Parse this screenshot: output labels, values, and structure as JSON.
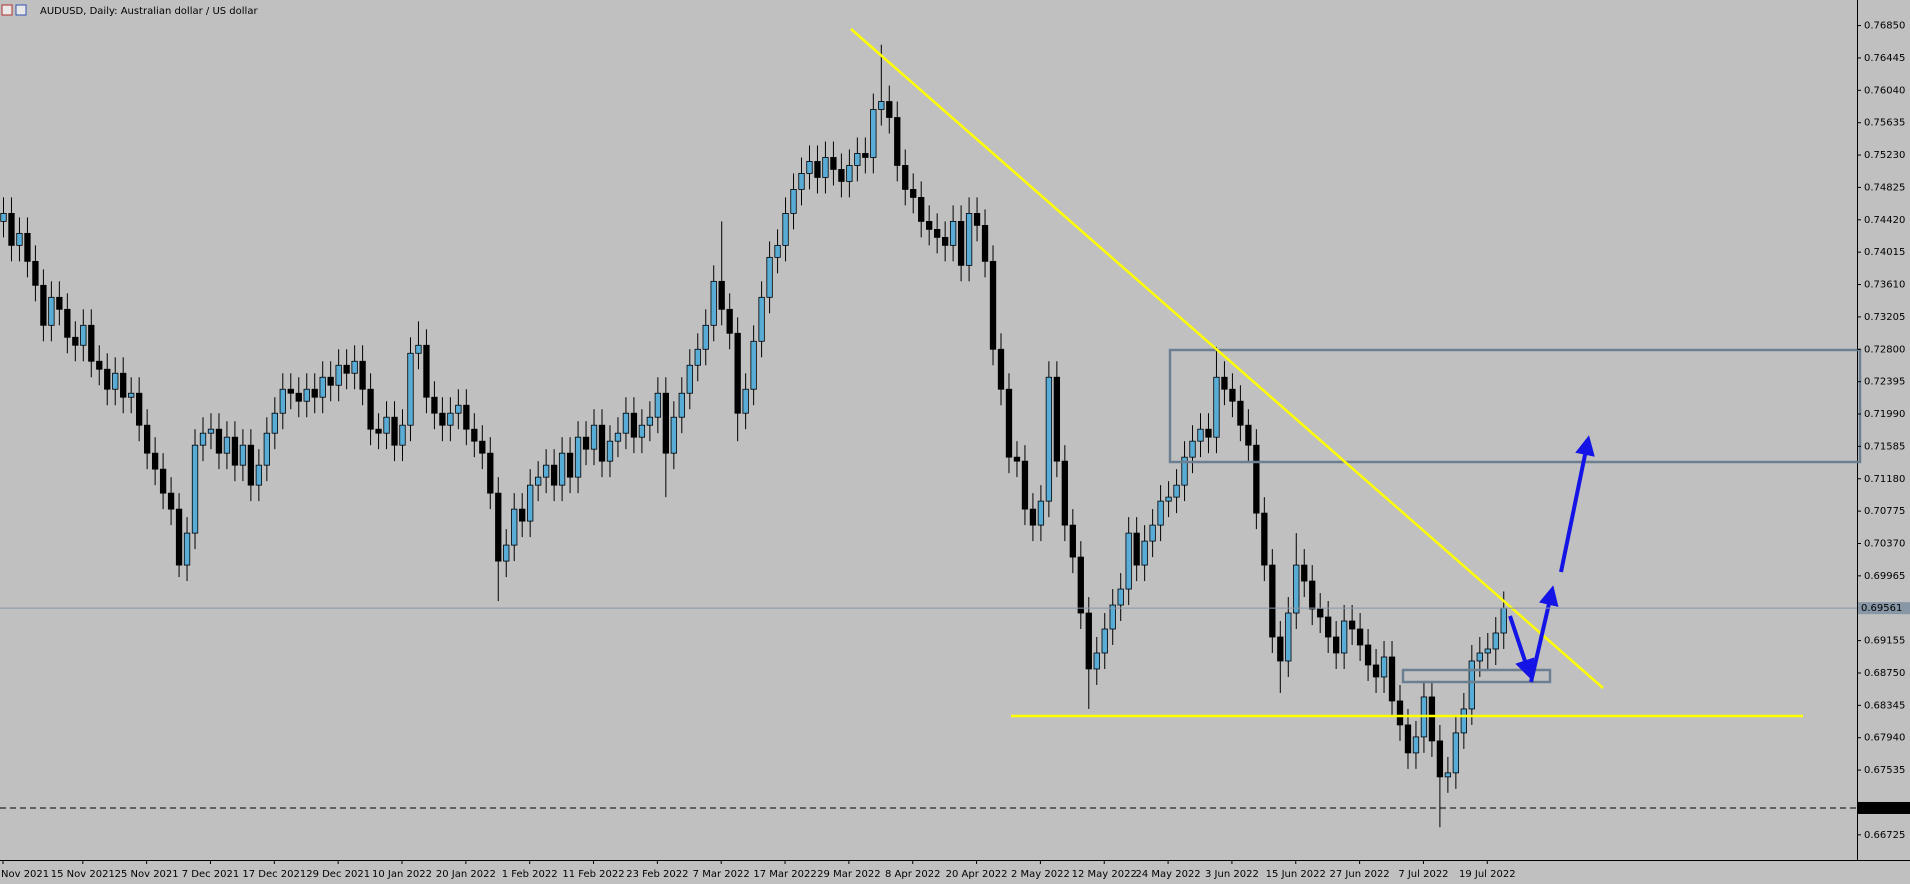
{
  "chart_data": {
    "type": "candlestick",
    "title": "AUDUSD, Daily:  Australian dollar / US dollar",
    "categories": [
      "Nov 2021",
      null,
      null,
      null,
      null,
      null,
      null,
      null,
      null,
      null,
      "15 Nov 2021",
      null,
      null,
      null,
      null,
      null,
      null,
      null,
      "25 Nov 2021",
      null,
      null,
      null,
      null,
      null,
      null,
      null,
      "7 Dec 2021",
      null,
      null,
      null,
      null,
      null,
      null,
      null,
      "17 Dec 2021",
      null,
      null,
      null,
      null,
      null,
      null,
      null,
      "29 Dec 2021",
      null,
      null,
      null,
      null,
      null,
      null,
      null,
      "10 Jan 2022",
      null,
      null,
      null,
      null,
      null,
      null,
      null,
      "20 Jan 2022",
      null,
      null,
      null,
      null,
      null,
      null,
      null,
      "1 Feb 2022",
      null,
      null,
      null,
      null,
      null,
      null,
      null,
      "11 Feb 2022",
      null,
      null,
      null,
      null,
      null,
      null,
      null,
      "23 Feb 2022",
      null,
      null,
      null,
      null,
      null,
      null,
      null,
      "7 Mar 2022",
      null,
      null,
      null,
      null,
      null,
      null,
      null,
      "17 Mar 2022",
      null,
      null,
      null,
      null,
      null,
      null,
      null,
      "29 Mar 2022",
      null,
      null,
      null,
      null,
      null,
      null,
      null,
      "8 Apr 2022",
      null,
      null,
      null,
      null,
      null,
      null,
      null,
      "20 Apr 2022",
      null,
      null,
      null,
      null,
      null,
      null,
      null,
      "2 May 2022",
      null,
      null,
      null,
      null,
      null,
      null,
      null,
      "12 May 2022",
      null,
      null,
      null,
      null,
      null,
      null,
      null,
      "24 May 2022",
      null,
      null,
      null,
      null,
      null,
      null,
      null,
      "3 Jun 2022",
      null,
      null,
      null,
      null,
      null,
      null,
      null,
      "15 Jun 2022",
      null,
      null,
      null,
      null,
      null,
      null,
      null,
      "27 Jun 2022",
      null,
      null,
      null,
      null,
      null,
      null,
      null,
      "7 Jul 2022",
      null,
      null,
      null,
      null,
      null,
      null,
      null,
      "19 Jul 2022",
      null,
      null
    ],
    "open": [
      0.744,
      0.745,
      0.741,
      0.7425,
      0.739,
      0.736,
      0.731,
      0.7345,
      0.733,
      0.7295,
      0.7285,
      0.731,
      0.7265,
      0.7255,
      0.723,
      0.725,
      0.722,
      0.7225,
      0.7185,
      0.715,
      0.713,
      0.71,
      0.708,
      0.701,
      0.705,
      0.716,
      0.7175,
      0.718,
      0.715,
      0.717,
      0.7135,
      0.716,
      0.711,
      0.7135,
      0.7175,
      0.72,
      0.723,
      0.7225,
      0.7215,
      0.723,
      0.722,
      0.7245,
      0.7235,
      0.726,
      0.725,
      0.7265,
      0.723,
      0.718,
      0.7175,
      0.7195,
      0.716,
      0.7185,
      0.7275,
      0.7285,
      0.722,
      0.72,
      0.7185,
      0.72,
      0.721,
      0.718,
      0.7165,
      0.715,
      0.71,
      0.7015,
      0.7035,
      0.708,
      0.7065,
      0.711,
      0.712,
      0.7135,
      0.711,
      0.715,
      0.712,
      0.717,
      0.7155,
      0.7185,
      0.714,
      0.7165,
      0.7175,
      0.72,
      0.717,
      0.7185,
      0.7195,
      0.7225,
      0.715,
      0.7195,
      0.7225,
      0.726,
      0.728,
      0.731,
      0.7365,
      0.733,
      0.73,
      0.72,
      0.723,
      0.729,
      0.7345,
      0.7395,
      0.741,
      0.745,
      0.748,
      0.75,
      0.7515,
      0.7495,
      0.752,
      0.7505,
      0.749,
      0.751,
      0.7525,
      0.752,
      0.758,
      0.759,
      0.757,
      0.751,
      0.748,
      0.747,
      0.744,
      0.743,
      0.742,
      0.741,
      0.744,
      0.7385,
      0.745,
      0.7435,
      0.739,
      0.728,
      0.723,
      0.7145,
      0.714,
      0.708,
      0.706,
      0.709,
      0.7245,
      0.714,
      0.706,
      0.702,
      0.695,
      0.688,
      0.69,
      0.693,
      0.696,
      0.698,
      0.705,
      0.701,
      0.704,
      0.706,
      0.709,
      0.7095,
      0.711,
      0.7145,
      0.7165,
      0.718,
      0.717,
      0.7245,
      0.723,
      0.7215,
      0.7185,
      0.716,
      0.7075,
      0.701,
      0.692,
      0.689,
      0.695,
      0.701,
      0.699,
      0.6955,
      0.6945,
      0.692,
      0.69,
      0.694,
      0.693,
      0.691,
      0.6885,
      0.687,
      0.6895,
      0.684,
      0.681,
      0.6775,
      0.6795,
      0.6845,
      0.679,
      0.6745,
      0.675,
      0.68,
      0.683,
      0.689,
      0.69,
      0.6905,
      0.6925
    ],
    "high": [
      0.747,
      0.747,
      0.7445,
      0.7445,
      0.741,
      0.738,
      0.7365,
      0.7365,
      0.735,
      0.7315,
      0.733,
      0.733,
      0.7285,
      0.7275,
      0.727,
      0.727,
      0.7245,
      0.7245,
      0.7205,
      0.717,
      0.715,
      0.712,
      0.71,
      0.707,
      0.718,
      0.7195,
      0.72,
      0.72,
      0.719,
      0.719,
      0.718,
      0.718,
      0.7155,
      0.7195,
      0.722,
      0.725,
      0.725,
      0.7245,
      0.725,
      0.725,
      0.7265,
      0.7265,
      0.728,
      0.728,
      0.7285,
      0.7285,
      0.725,
      0.72,
      0.7215,
      0.7215,
      0.7205,
      0.7295,
      0.7315,
      0.7305,
      0.724,
      0.722,
      0.722,
      0.723,
      0.723,
      0.72,
      0.7185,
      0.717,
      0.712,
      0.7055,
      0.71,
      0.71,
      0.713,
      0.714,
      0.7155,
      0.7155,
      0.717,
      0.717,
      0.719,
      0.719,
      0.7205,
      0.7205,
      0.7185,
      0.7195,
      0.722,
      0.722,
      0.7205,
      0.7215,
      0.7245,
      0.7245,
      0.7215,
      0.7245,
      0.728,
      0.73,
      0.733,
      0.7385,
      0.744,
      0.735,
      0.732,
      0.725,
      0.731,
      0.7365,
      0.7415,
      0.743,
      0.747,
      0.75,
      0.752,
      0.7535,
      0.7535,
      0.754,
      0.754,
      0.7525,
      0.753,
      0.7545,
      0.7545,
      0.76,
      0.7661,
      0.761,
      0.759,
      0.753,
      0.75,
      0.749,
      0.746,
      0.745,
      0.744,
      0.746,
      0.746,
      0.747,
      0.747,
      0.7455,
      0.741,
      0.73,
      0.725,
      0.7165,
      0.716,
      0.71,
      0.711,
      0.7265,
      0.7265,
      0.716,
      0.708,
      0.704,
      0.697,
      0.692,
      0.695,
      0.698,
      0.7,
      0.707,
      0.707,
      0.706,
      0.708,
      0.711,
      0.7115,
      0.713,
      0.7165,
      0.7185,
      0.72,
      0.72,
      0.7283,
      0.7265,
      0.725,
      0.7235,
      0.7205,
      0.718,
      0.7095,
      0.703,
      0.694,
      0.697,
      0.705,
      0.703,
      0.701,
      0.6975,
      0.6965,
      0.694,
      0.696,
      0.696,
      0.695,
      0.693,
      0.6905,
      0.6915,
      0.6915,
      0.686,
      0.683,
      0.6815,
      0.6865,
      0.6865,
      0.681,
      0.677,
      0.682,
      0.685,
      0.691,
      0.692,
      0.6925,
      0.6945,
      0.6977
    ],
    "low": [
      0.742,
      0.739,
      0.739,
      0.737,
      0.734,
      0.729,
      0.729,
      0.731,
      0.7275,
      0.7265,
      0.7265,
      0.7245,
      0.7235,
      0.721,
      0.721,
      0.72,
      0.72,
      0.7165,
      0.713,
      0.711,
      0.708,
      0.706,
      0.6995,
      0.699,
      0.703,
      0.714,
      0.7155,
      0.713,
      0.713,
      0.7115,
      0.7115,
      0.709,
      0.709,
      0.7115,
      0.7155,
      0.718,
      0.7205,
      0.7195,
      0.7195,
      0.72,
      0.72,
      0.7215,
      0.7215,
      0.723,
      0.723,
      0.721,
      0.716,
      0.7155,
      0.7155,
      0.714,
      0.714,
      0.7165,
      0.7255,
      0.72,
      0.718,
      0.7165,
      0.7165,
      0.718,
      0.716,
      0.7145,
      0.713,
      0.708,
      0.6965,
      0.6995,
      0.7015,
      0.7045,
      0.7045,
      0.709,
      0.71,
      0.709,
      0.709,
      0.71,
      0.71,
      0.7135,
      0.7135,
      0.712,
      0.712,
      0.7145,
      0.7155,
      0.715,
      0.715,
      0.7165,
      0.7175,
      0.7095,
      0.713,
      0.7175,
      0.7205,
      0.724,
      0.726,
      0.729,
      0.731,
      0.728,
      0.7165,
      0.718,
      0.721,
      0.727,
      0.7325,
      0.7375,
      0.739,
      0.743,
      0.746,
      0.748,
      0.7475,
      0.7475,
      0.7485,
      0.747,
      0.747,
      0.749,
      0.75,
      0.75,
      0.756,
      0.755,
      0.749,
      0.746,
      0.745,
      0.742,
      0.741,
      0.74,
      0.739,
      0.739,
      0.7365,
      0.7365,
      0.7415,
      0.737,
      0.726,
      0.721,
      0.7125,
      0.712,
      0.706,
      0.704,
      0.704,
      0.707,
      0.712,
      0.704,
      0.7,
      0.693,
      0.683,
      0.686,
      0.688,
      0.691,
      0.694,
      0.696,
      0.699,
      0.699,
      0.702,
      0.704,
      0.707,
      0.7075,
      0.709,
      0.7125,
      0.7145,
      0.715,
      0.715,
      0.721,
      0.7195,
      0.7165,
      0.714,
      0.7055,
      0.699,
      0.69,
      0.685,
      0.687,
      0.693,
      0.697,
      0.6935,
      0.6925,
      0.69,
      0.688,
      0.688,
      0.691,
      0.689,
      0.6865,
      0.685,
      0.685,
      0.682,
      0.679,
      0.6755,
      0.6755,
      0.6775,
      0.677,
      0.6682,
      0.6725,
      0.673,
      0.678,
      0.681,
      0.687,
      0.688,
      0.6885,
      0.6905
    ],
    "close": [
      0.745,
      0.741,
      0.7425,
      0.739,
      0.736,
      0.731,
      0.7345,
      0.733,
      0.7295,
      0.7285,
      0.731,
      0.7265,
      0.7255,
      0.723,
      0.725,
      0.722,
      0.7225,
      0.7185,
      0.715,
      0.713,
      0.71,
      0.708,
      0.701,
      0.705,
      0.716,
      0.7175,
      0.718,
      0.715,
      0.717,
      0.7135,
      0.716,
      0.711,
      0.7135,
      0.7175,
      0.72,
      0.723,
      0.7225,
      0.7215,
      0.723,
      0.722,
      0.7245,
      0.7235,
      0.726,
      0.725,
      0.7265,
      0.723,
      0.718,
      0.7175,
      0.7195,
      0.716,
      0.7185,
      0.7275,
      0.7285,
      0.722,
      0.72,
      0.7185,
      0.72,
      0.721,
      0.718,
      0.7165,
      0.715,
      0.71,
      0.7015,
      0.7035,
      0.708,
      0.7065,
      0.711,
      0.712,
      0.7135,
      0.711,
      0.715,
      0.712,
      0.717,
      0.7155,
      0.7185,
      0.714,
      0.7165,
      0.7175,
      0.72,
      0.717,
      0.7185,
      0.7195,
      0.7225,
      0.715,
      0.7195,
      0.7225,
      0.726,
      0.728,
      0.731,
      0.7365,
      0.733,
      0.73,
      0.72,
      0.723,
      0.729,
      0.7345,
      0.7395,
      0.741,
      0.745,
      0.748,
      0.75,
      0.7515,
      0.7495,
      0.752,
      0.7505,
      0.749,
      0.751,
      0.7525,
      0.752,
      0.758,
      0.759,
      0.757,
      0.751,
      0.748,
      0.747,
      0.744,
      0.743,
      0.742,
      0.741,
      0.744,
      0.7385,
      0.745,
      0.7435,
      0.739,
      0.728,
      0.723,
      0.7145,
      0.714,
      0.708,
      0.706,
      0.709,
      0.7245,
      0.714,
      0.706,
      0.702,
      0.695,
      0.688,
      0.69,
      0.693,
      0.696,
      0.698,
      0.705,
      0.701,
      0.704,
      0.706,
      0.709,
      0.7095,
      0.711,
      0.7145,
      0.7165,
      0.718,
      0.717,
      0.7245,
      0.723,
      0.7215,
      0.7185,
      0.716,
      0.7075,
      0.701,
      0.692,
      0.689,
      0.695,
      0.701,
      0.699,
      0.6955,
      0.6945,
      0.692,
      0.69,
      0.694,
      0.693,
      0.691,
      0.6885,
      0.687,
      0.6895,
      0.684,
      0.681,
      0.6775,
      0.6795,
      0.6845,
      0.679,
      0.6745,
      0.675,
      0.68,
      0.683,
      0.689,
      0.69,
      0.6905,
      0.6925,
      0.6956
    ],
    "up_color": "#58acd6",
    "down_color": "#000000",
    "ylim": [
      0.6641,
      0.7717
    ],
    "yticks": [
      {
        "value": 0.7685,
        "label": "0.76850"
      },
      {
        "value": 0.76445,
        "label": "0.76445"
      },
      {
        "value": 0.7604,
        "label": "0.76040"
      },
      {
        "value": 0.75635,
        "label": "0.75635"
      },
      {
        "value": 0.7523,
        "label": "0.75230"
      },
      {
        "value": 0.74825,
        "label": "0.74825"
      },
      {
        "value": 0.7442,
        "label": "0.74420"
      },
      {
        "value": 0.74015,
        "label": "0.74015"
      },
      {
        "value": 0.7361,
        "label": "0.73610"
      },
      {
        "value": 0.73205,
        "label": "0.73205"
      },
      {
        "value": 0.728,
        "label": "0.72800"
      },
      {
        "value": 0.72395,
        "label": "0.72395"
      },
      {
        "value": 0.7199,
        "label": "0.71990"
      },
      {
        "value": 0.71585,
        "label": "0.71585"
      },
      {
        "value": 0.7118,
        "label": "0.71180"
      },
      {
        "value": 0.70775,
        "label": "0.70775"
      },
      {
        "value": 0.7037,
        "label": "0.70370"
      },
      {
        "value": 0.69965,
        "label": "0.69965"
      },
      {
        "value": 0.69155,
        "label": "0.69155"
      },
      {
        "value": 0.6875,
        "label": "0.68750"
      },
      {
        "value": 0.68345,
        "label": "0.68345"
      },
      {
        "value": 0.6794,
        "label": "0.67940"
      },
      {
        "value": 0.67535,
        "label": "0.67535"
      },
      {
        "value": 0.66725,
        "label": "0.66725"
      }
    ],
    "price_lines": [
      {
        "value": 0.69561,
        "label": "0.69561",
        "color": "#8797a6"
      },
      {
        "value": 0.67061,
        "label": "0.67061",
        "color": "#000000"
      }
    ]
  }
}
